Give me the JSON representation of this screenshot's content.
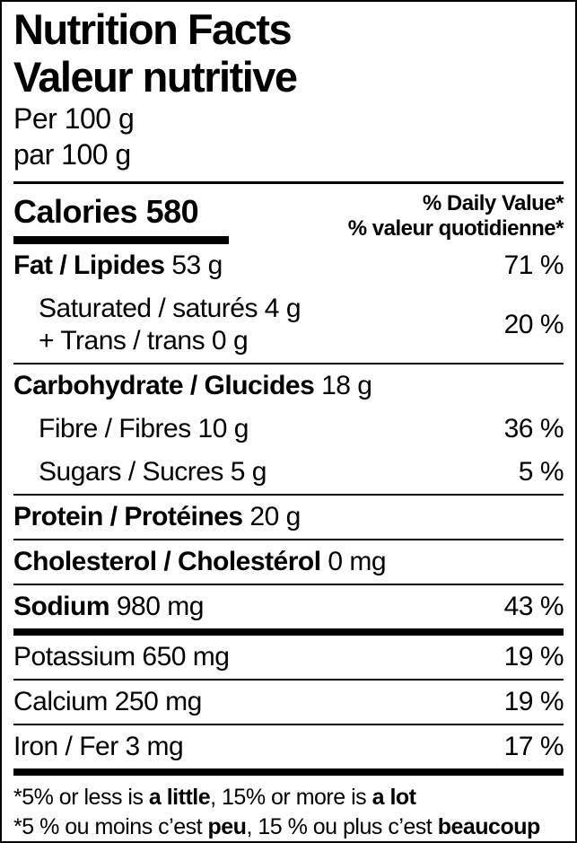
{
  "colors": {
    "text": "#000000",
    "background": "#ffffff",
    "border": "#000000"
  },
  "header": {
    "title_en": "Nutrition Facts",
    "title_fr": "Valeur nutritive",
    "serving_en": "Per 100 g",
    "serving_fr": "par 100 g"
  },
  "calories": {
    "label": "Calories",
    "value": "580",
    "daily_value_en": "% Daily Value*",
    "daily_value_fr": "% valeur quotidienne*"
  },
  "nutrients": [
    {
      "key": "fat",
      "style": "major",
      "name": "Fat / Lipides",
      "amount": "53 g",
      "percent": "71 %",
      "rule_after": "none"
    },
    {
      "key": "saturated-trans",
      "style": "sub2",
      "lines": [
        "Saturated / saturés 4 g",
        "+ Trans / trans 0 g"
      ],
      "percent": "20 %",
      "rule_after": "thin"
    },
    {
      "key": "carbohydrate",
      "style": "major",
      "name": "Carbohydrate / Glucides",
      "amount": "18 g",
      "percent": "",
      "rule_after": "none"
    },
    {
      "key": "fibre",
      "style": "sub",
      "name": "Fibre / Fibres",
      "amount": "10 g",
      "percent": "36 %",
      "rule_after": "none"
    },
    {
      "key": "sugars",
      "style": "sub",
      "name": "Sugars / Sucres",
      "amount": "5 g",
      "percent": "5 %",
      "rule_after": "thin"
    },
    {
      "key": "protein",
      "style": "major",
      "name": "Protein / Protéines",
      "amount": "20 g",
      "percent": "",
      "rule_after": "thin"
    },
    {
      "key": "cholesterol",
      "style": "major",
      "name": "Cholesterol / Cholestérol",
      "amount": "0 mg",
      "percent": "",
      "rule_after": "thin"
    },
    {
      "key": "sodium",
      "style": "major",
      "name": "Sodium",
      "amount": "980 mg",
      "percent": "43 %",
      "rule_after": "thick"
    },
    {
      "key": "potassium",
      "style": "plain",
      "name": "Potassium",
      "amount": "650 mg",
      "percent": "19 %",
      "rule_after": "thin"
    },
    {
      "key": "calcium",
      "style": "plain",
      "name": "Calcium",
      "amount": "250 mg",
      "percent": "19 %",
      "rule_after": "thin"
    },
    {
      "key": "iron",
      "style": "plain",
      "name": "Iron / Fer",
      "amount": "3 mg",
      "percent": "17 %",
      "rule_after": "thick"
    }
  ],
  "footnote_en": [
    {
      "t": "*5% or less is ",
      "b": false
    },
    {
      "t": "a little",
      "b": true
    },
    {
      "t": ", 15% or more is ",
      "b": false
    },
    {
      "t": "a lot",
      "b": true
    }
  ],
  "footnote_fr": [
    {
      "t": "*5 % ou moins c’est ",
      "b": false
    },
    {
      "t": "peu",
      "b": true
    },
    {
      "t": ", 15 % ou plus c’est ",
      "b": false
    },
    {
      "t": "beaucoup",
      "b": true
    }
  ]
}
